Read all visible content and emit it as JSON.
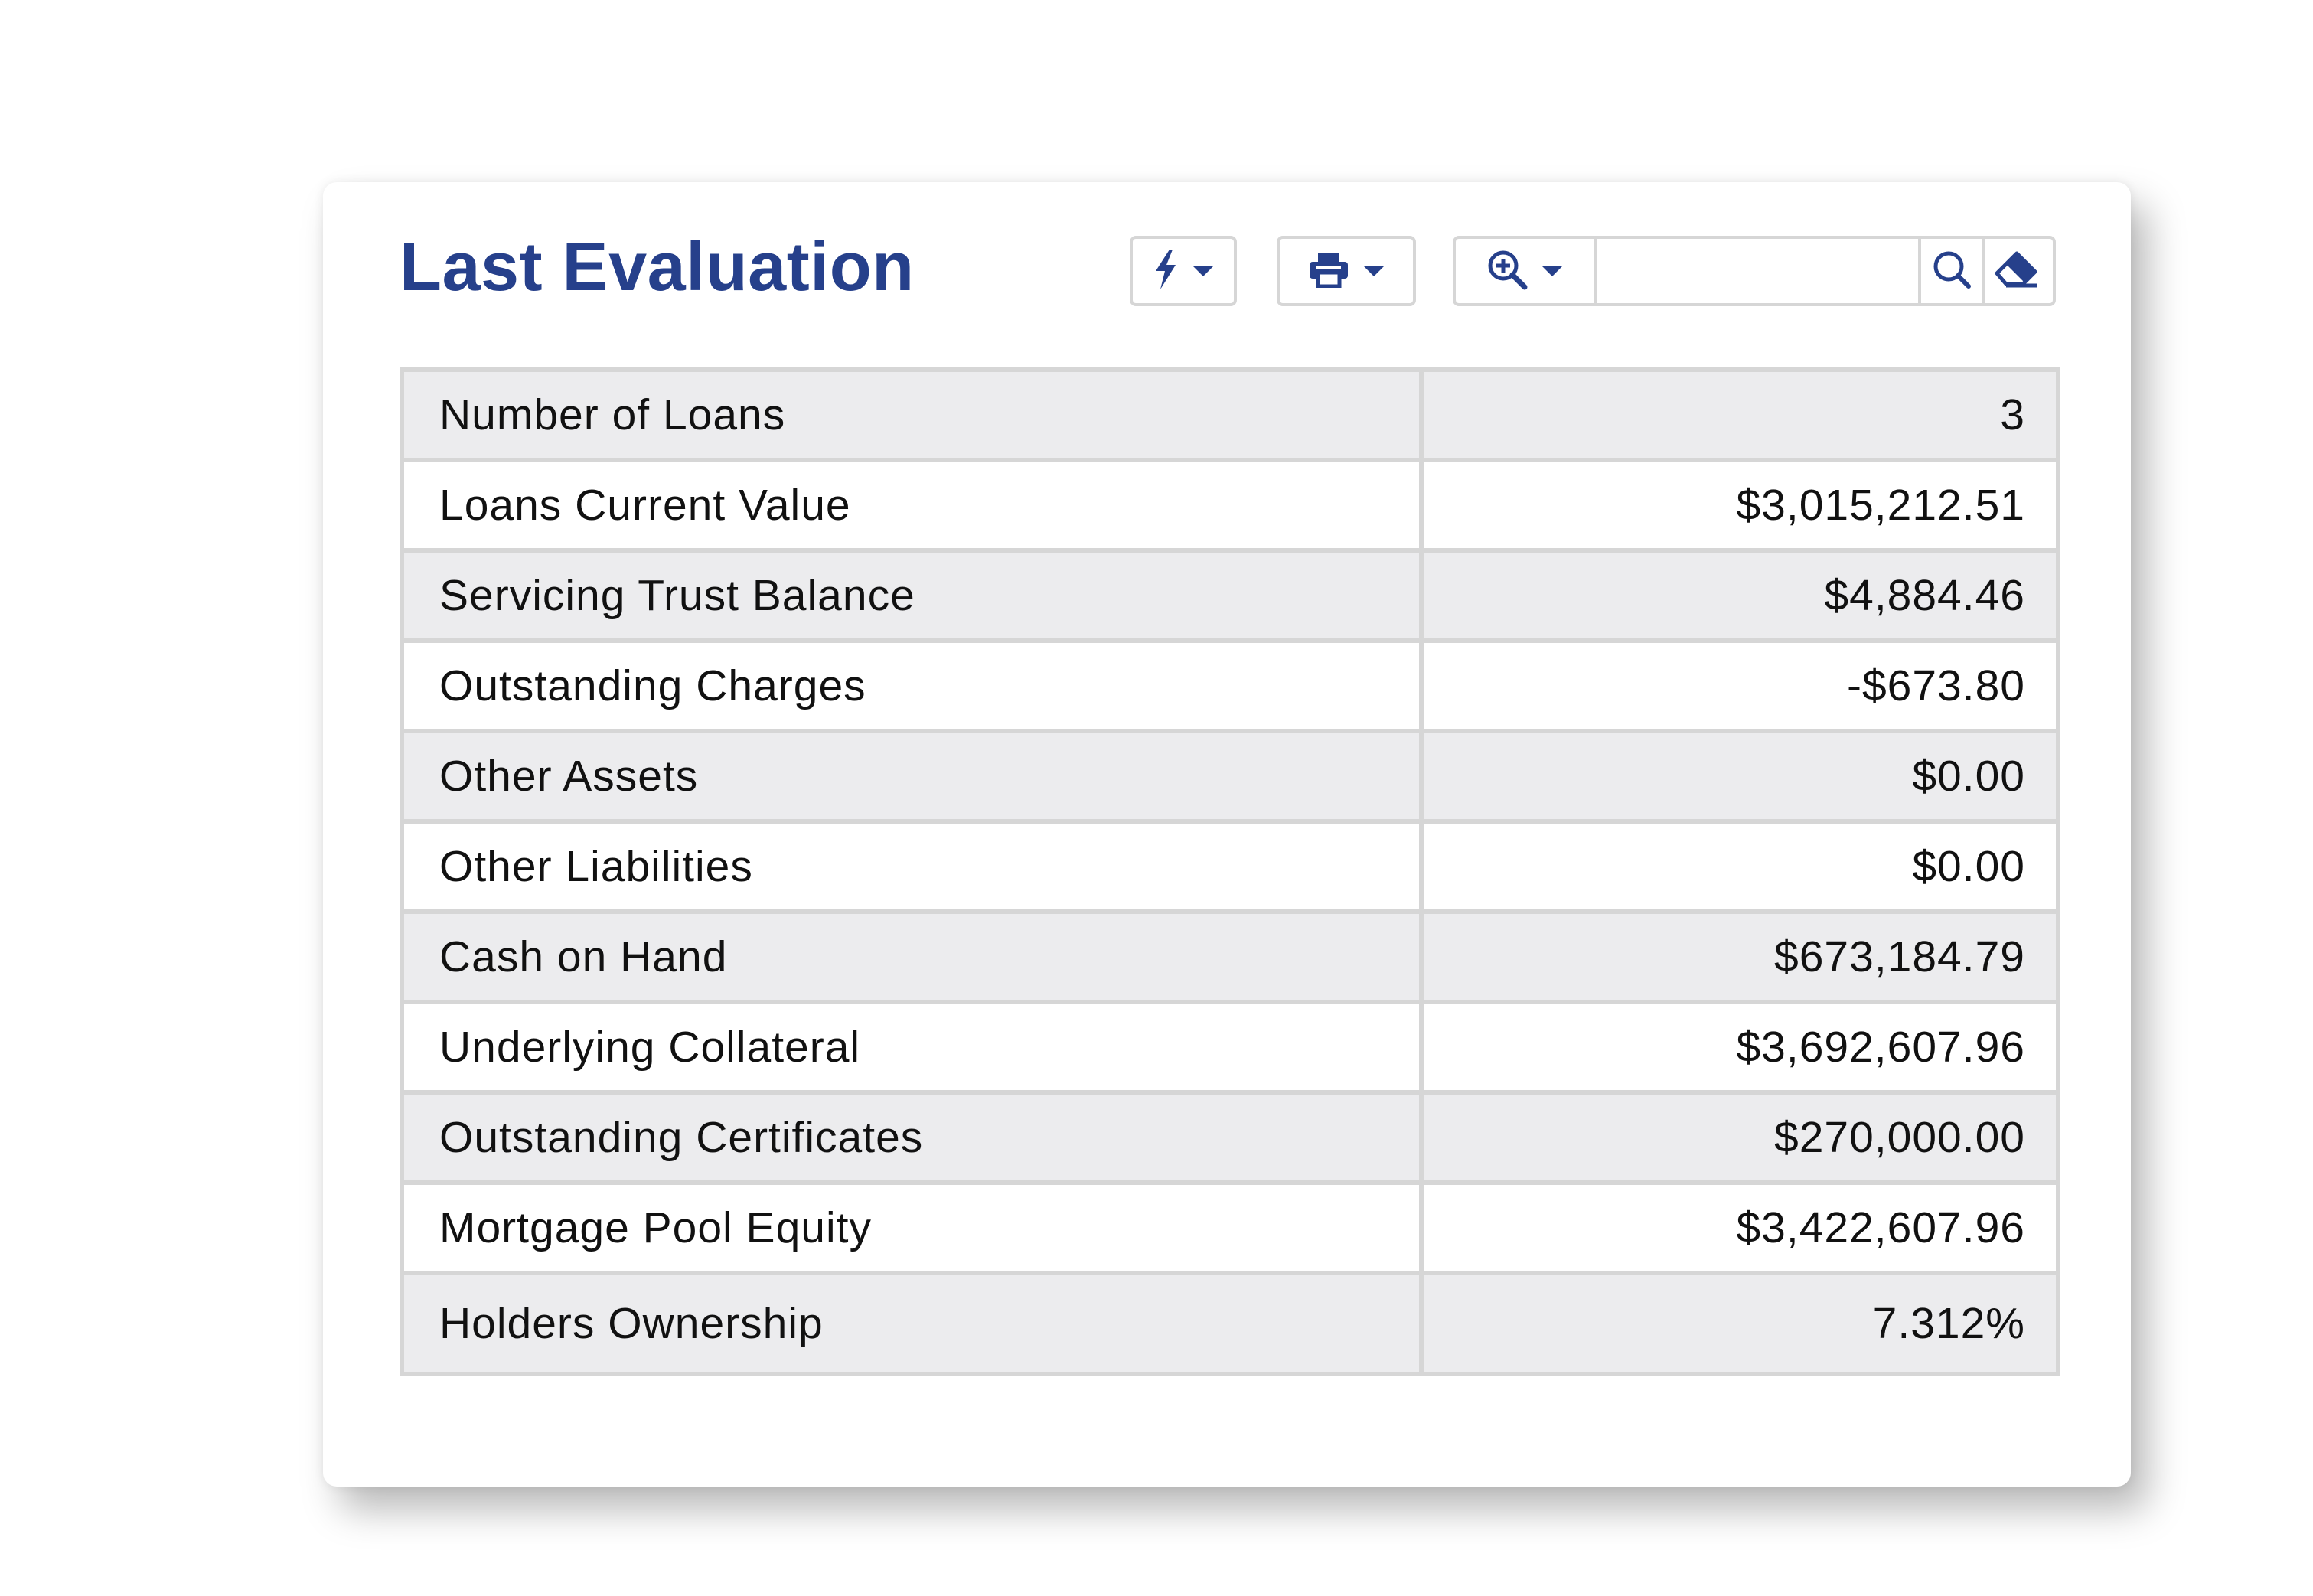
{
  "panel": {
    "title": "Last Evaluation"
  },
  "toolbar": {
    "action_icon": "lightning-bolt-icon",
    "print_icon": "printer-icon",
    "zoom_icon": "zoom-in-icon",
    "search_icon": "search-icon",
    "clear_icon": "eraser-icon",
    "search_value": "",
    "search_placeholder": ""
  },
  "table": {
    "rows": [
      {
        "label": "Number of Loans",
        "value": "3"
      },
      {
        "label": "Loans Current Value",
        "value": "$3,015,212.51"
      },
      {
        "label": "Servicing Trust Balance",
        "value": "$4,884.46"
      },
      {
        "label": "Outstanding Charges",
        "value": "-$673.80"
      },
      {
        "label": "Other Assets",
        "value": "$0.00"
      },
      {
        "label": "Other Liabilities",
        "value": "$0.00"
      },
      {
        "label": "Cash on Hand",
        "value": "$673,184.79"
      },
      {
        "label": "Underlying Collateral",
        "value": "$3,692,607.96"
      },
      {
        "label": "Outstanding Certificates",
        "value": "$270,000.00"
      },
      {
        "label": "Mortgage Pool Equity",
        "value": "$3,422,607.96"
      },
      {
        "label": "Holders Ownership",
        "value": "7.312%"
      }
    ]
  },
  "colors": {
    "accent": "#26408b",
    "border": "#d6d6d6",
    "row_alt": "#ececee"
  }
}
